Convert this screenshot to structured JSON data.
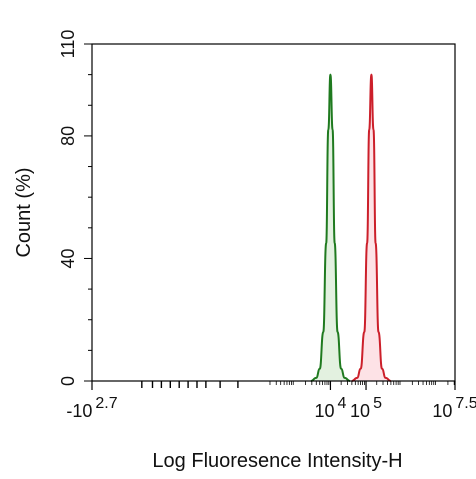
{
  "chart_data": {
    "type": "area",
    "xlabel": "Log Fluoresence Intensity-H",
    "ylabel": "Count (%)",
    "ylim": [
      0,
      110
    ],
    "yticks": [
      {
        "value": 0,
        "label": "0"
      },
      {
        "value": 40,
        "label": "40"
      },
      {
        "value": 80,
        "label": "80"
      },
      {
        "value": 110,
        "label": "110"
      }
    ],
    "xaxis": {
      "scale": "biexponential-log",
      "range_exponent": [
        -2.7,
        7.5
      ],
      "labels": [
        {
          "base": "-10",
          "exp": "2.7",
          "exponent": -2.7
        },
        {
          "base": "10",
          "exp": "4",
          "exponent": 4
        },
        {
          "base": "10",
          "exp": "5",
          "exponent": 5
        },
        {
          "base": "10",
          "exp": "7.5",
          "exponent": 7.5
        }
      ]
    },
    "series": [
      {
        "color": "#1f7a1f",
        "fill": "#e3f1e0",
        "peak_log10": 4.0,
        "peak_count": 100,
        "x_log10": [
          3.45,
          3.6,
          3.7,
          3.8,
          3.88,
          3.94,
          4.0,
          4.06,
          4.12,
          4.2,
          4.3,
          4.4,
          4.55
        ],
        "y": [
          0,
          1,
          4,
          16,
          45,
          82,
          100,
          82,
          45,
          16,
          4,
          1,
          0
        ]
      },
      {
        "color": "#cc1f2a",
        "fill": "#fde2e6",
        "peak_log10": 5.15,
        "peak_count": 100,
        "x_log10": [
          4.6,
          4.75,
          4.85,
          4.95,
          5.03,
          5.09,
          5.15,
          5.21,
          5.27,
          5.35,
          5.45,
          5.55,
          5.7
        ],
        "y": [
          0,
          1,
          4,
          16,
          45,
          82,
          100,
          82,
          45,
          16,
          4,
          1,
          0
        ]
      }
    ]
  }
}
